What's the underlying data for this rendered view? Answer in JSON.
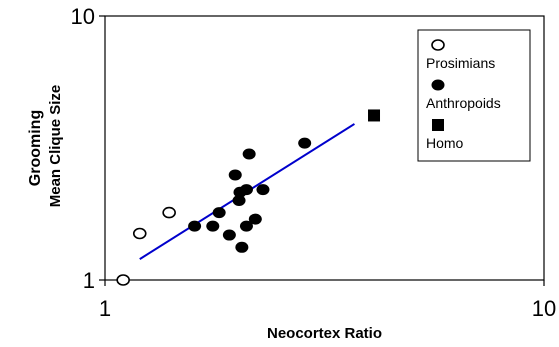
{
  "chart_data": {
    "type": "scatter",
    "xscale": "log",
    "yscale": "log",
    "xlim": [
      1,
      10
    ],
    "ylim": [
      1,
      10
    ],
    "x_ticks": [
      "1",
      "10"
    ],
    "y_ticks": [
      "1",
      "10"
    ],
    "xlabel": "Neocortex Ratio",
    "ylabel_line1": "Grooming",
    "ylabel_line2": "Mean Clique Size",
    "grid": false,
    "legend_position": "top-right",
    "series": [
      {
        "name": "Prosimians",
        "marker": "open-circle",
        "color": "#000000",
        "x": [
          1.1,
          1.2,
          1.4
        ],
        "y": [
          1.0,
          1.5,
          1.8
        ]
      },
      {
        "name": "Anthropoids",
        "marker": "filled-circle",
        "color": "#000000",
        "x": [
          1.6,
          1.76,
          1.82,
          1.92,
          1.98,
          2.02,
          2.03,
          2.05,
          2.1,
          2.1,
          2.13,
          2.2,
          2.29,
          2.85
        ],
        "y": [
          1.6,
          1.6,
          1.8,
          1.48,
          2.5,
          2.0,
          2.15,
          1.33,
          2.2,
          1.6,
          3.0,
          1.7,
          2.2,
          3.3
        ]
      },
      {
        "name": "Homo",
        "marker": "filled-square",
        "color": "#000000",
        "x": [
          4.1
        ],
        "y": [
          4.2
        ]
      }
    ],
    "regression_line": {
      "color": "#0000cc",
      "x": [
        1.2,
        3.7
      ],
      "y": [
        1.2,
        3.9
      ]
    }
  }
}
